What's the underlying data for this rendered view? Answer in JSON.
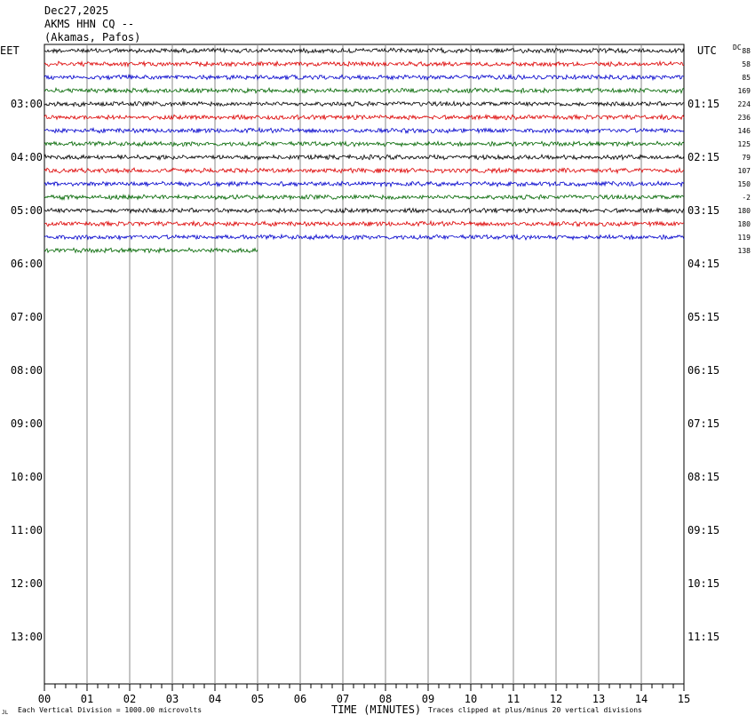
{
  "header": {
    "date": "Dec27,2025",
    "station": "AKMS HHN CQ --",
    "location": "(Akamas, Pafos)"
  },
  "chart_data": {
    "type": "line",
    "title": "",
    "left_axis_label": "EET",
    "right_axis_label": "UTC",
    "dc_label": "DC",
    "left_hour_labels": [
      "03:00",
      "04:00",
      "05:00",
      "06:00",
      "07:00",
      "08:00",
      "09:00",
      "10:00",
      "11:00",
      "12:00",
      "13:00"
    ],
    "right_hour_labels": [
      "01:15",
      "02:15",
      "03:15",
      "04:15",
      "05:15",
      "06:15",
      "07:15",
      "08:15",
      "09:15",
      "10:15",
      "11:15"
    ],
    "x_tick_labels": [
      "00",
      "01",
      "02",
      "03",
      "04",
      "05",
      "06",
      "07",
      "08",
      "09",
      "10",
      "11",
      "12",
      "13",
      "14",
      "15"
    ],
    "xlabel": "TIME (MINUTES)",
    "xlim": [
      0,
      15
    ],
    "dc_offsets": [
      "88",
      "58",
      "85",
      "169",
      "224",
      "236",
      "146",
      "125",
      "79",
      "107",
      "150",
      "-2",
      "180",
      "180",
      "119",
      "138"
    ],
    "trace_colors": [
      "#000000",
      "#dd0000",
      "#0000cc",
      "#006600"
    ],
    "traces_per_hour": 4,
    "rows_total": 48,
    "traces": [
      {
        "row": 0,
        "end_minute": 15
      },
      {
        "row": 1,
        "end_minute": 15
      },
      {
        "row": 2,
        "end_minute": 15
      },
      {
        "row": 3,
        "end_minute": 15
      },
      {
        "row": 4,
        "end_minute": 15
      },
      {
        "row": 5,
        "end_minute": 15
      },
      {
        "row": 6,
        "end_minute": 15
      },
      {
        "row": 7,
        "end_minute": 15
      },
      {
        "row": 8,
        "end_minute": 15
      },
      {
        "row": 9,
        "end_minute": 15
      },
      {
        "row": 10,
        "end_minute": 15
      },
      {
        "row": 11,
        "end_minute": 15
      },
      {
        "row": 12,
        "end_minute": 15
      },
      {
        "row": 13,
        "end_minute": 15
      },
      {
        "row": 14,
        "end_minute": 15
      },
      {
        "row": 15,
        "end_minute": 5
      }
    ],
    "footer_left": "Each Vertical Division = 1000.00 microvolts",
    "footer_right": "Traces clipped at plus/minus 20 vertical divisions",
    "corner_mark": "JL"
  }
}
